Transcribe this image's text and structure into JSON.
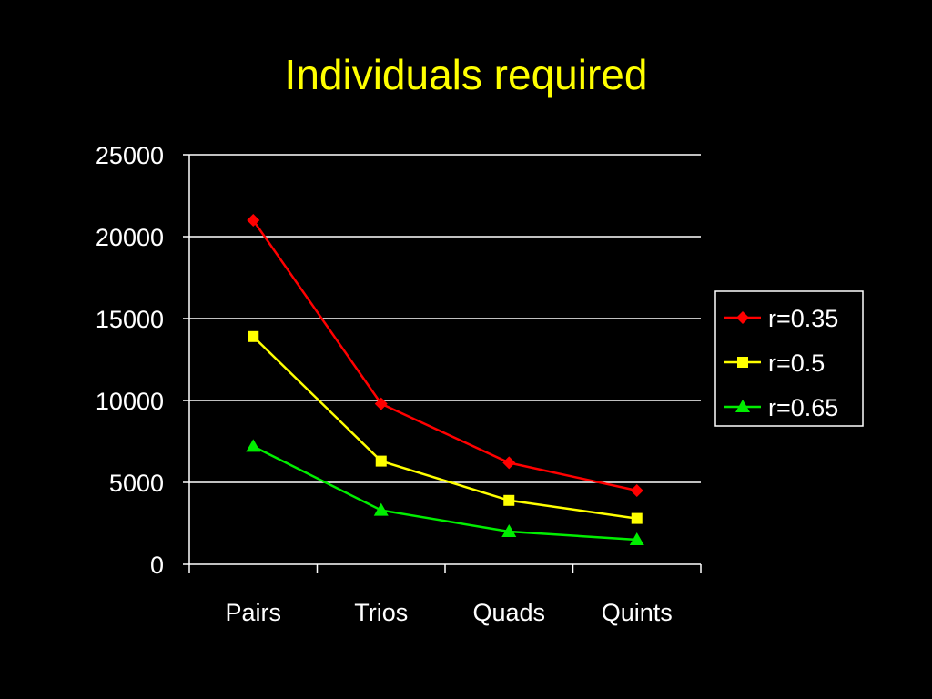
{
  "chart_data": {
    "type": "line",
    "title": "Individuals required",
    "xlabel": "",
    "ylabel": "",
    "categories": [
      "Pairs",
      "Trios",
      "Quads",
      "Quints"
    ],
    "ylim": [
      0,
      25000
    ],
    "yticks": [
      0,
      5000,
      10000,
      15000,
      20000,
      25000
    ],
    "grid": true,
    "legend_position": "right",
    "series": [
      {
        "name": "r=0.35",
        "values": [
          21000,
          9800,
          6200,
          4500
        ],
        "color": "#ff0000",
        "marker": "diamond"
      },
      {
        "name": "r=0.5",
        "values": [
          13900,
          6300,
          3900,
          2800
        ],
        "color": "#ffff00",
        "marker": "square"
      },
      {
        "name": "r=0.65",
        "values": [
          7200,
          3300,
          2000,
          1500
        ],
        "color": "#00ee00",
        "marker": "triangle"
      }
    ]
  },
  "colors": {
    "background": "#000000",
    "title": "#ffff00",
    "axis": "#ffffff",
    "text": "#ffffff"
  }
}
